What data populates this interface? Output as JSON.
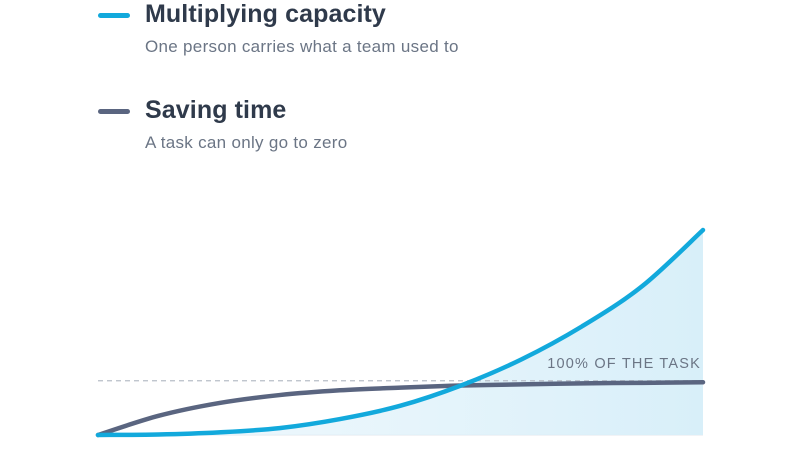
{
  "legend": [
    {
      "title": "Multiplying capacity",
      "subtitle": "One person carries what a team used to",
      "color": "#12a9dc"
    },
    {
      "title": "Saving time",
      "subtitle": "A task can only go to zero",
      "color": "#5a6580"
    }
  ],
  "chart_data": {
    "type": "line",
    "x": [
      0,
      0.1,
      0.2,
      0.3,
      0.4,
      0.5,
      0.6,
      0.7,
      0.8,
      0.9,
      1.0
    ],
    "xlim": [
      0,
      1
    ],
    "ylim": [
      0,
      3.85
    ],
    "series": [
      {
        "name": "Multiplying capacity",
        "color": "#12a9dc",
        "fill": true,
        "values": [
          0,
          0.01,
          0.05,
          0.13,
          0.3,
          0.55,
          0.93,
          1.42,
          2.04,
          2.8,
          3.85
        ]
      },
      {
        "name": "Saving time",
        "color": "#5a6580",
        "fill": false,
        "values": [
          0,
          0.36,
          0.6,
          0.75,
          0.84,
          0.89,
          0.93,
          0.95,
          0.97,
          0.98,
          0.99
        ]
      }
    ],
    "reference_line": {
      "value": 1.0,
      "label": "100% OF THE TASK",
      "style": "dashed",
      "color": "#b8bec8"
    },
    "grid": false,
    "legend_position": "top-left"
  }
}
